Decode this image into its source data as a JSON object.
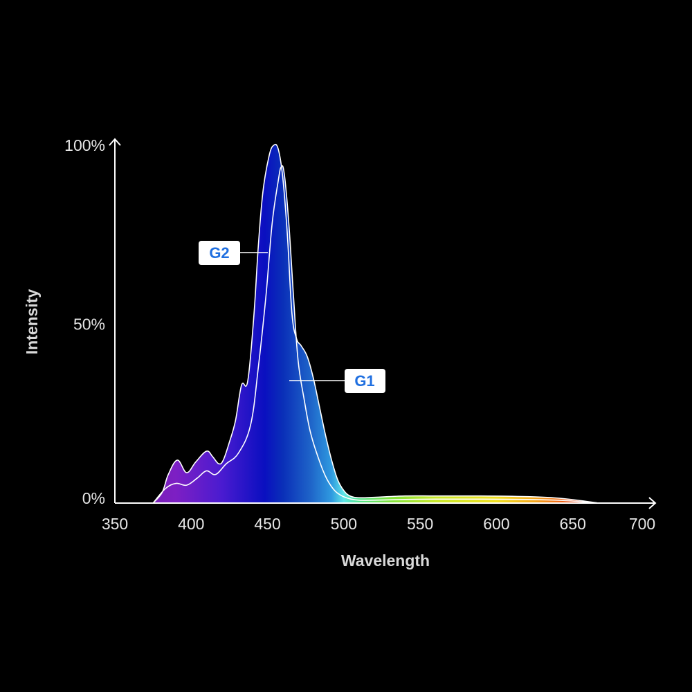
{
  "chart_data": {
    "type": "area",
    "xlabel": "Wavelength",
    "ylabel": "Intensity",
    "xlim": [
      350,
      700
    ],
    "ylim": [
      0,
      100
    ],
    "x_ticks": [
      "350",
      "400",
      "450",
      "500",
      "550",
      "600",
      "650",
      "700"
    ],
    "y_ticks": [
      "0%",
      "50%",
      "100%"
    ],
    "series": [
      {
        "name": "G2",
        "x": [
          375,
          381,
          385,
          391,
          397,
          403,
          410,
          414,
          418,
          421,
          425,
          429,
          433,
          437,
          441,
          444,
          447,
          451,
          454,
          457,
          460,
          463,
          466,
          469,
          472,
          476,
          480,
          484,
          488,
          492,
          496,
          500,
          504,
          510,
          520,
          540,
          560,
          590,
          620,
          640,
          655,
          667
        ],
        "y": [
          0,
          3,
          8,
          12,
          8.5,
          11.5,
          14.5,
          13,
          11,
          12,
          17,
          23,
          33,
          34,
          52,
          72,
          87,
          97,
          100,
          99,
          91,
          75,
          53,
          46,
          44,
          41,
          35,
          27,
          19,
          12,
          6.5,
          3.5,
          2,
          1.5,
          1.6,
          2,
          2,
          2,
          1.8,
          1.4,
          0.7,
          0
        ]
      },
      {
        "name": "G1",
        "x": [
          375,
          383,
          390,
          397,
          404,
          410,
          416,
          423,
          431,
          439,
          444,
          449,
          453,
          457,
          459,
          461,
          464,
          467,
          470,
          474,
          478,
          483,
          488,
          493,
          498,
          504,
          510,
          520,
          540,
          560,
          590,
          620,
          640,
          655,
          667
        ],
        "y": [
          0,
          4,
          5.5,
          5,
          7,
          9,
          8,
          11,
          14,
          22,
          38,
          58,
          78,
          90,
          94,
          92,
          78,
          58,
          40,
          29,
          20,
          13,
          7.5,
          4,
          2.2,
          1.2,
          0.8,
          0.8,
          1,
          1.1,
          1.1,
          1,
          0.8,
          0.4,
          0
        ]
      }
    ],
    "callouts": [
      {
        "label": "G2",
        "series": "G2"
      },
      {
        "label": "G1",
        "series": "G1"
      }
    ],
    "colors": {
      "background": "#000000",
      "axis": "#ffffff",
      "callout_text": "#1f6fe0",
      "callout_box": "#ffffff",
      "spectrum": [
        "#7a1fb8",
        "#7d1fc4",
        "#4a1bd0",
        "#0a0fc0",
        "#0a2fb8",
        "#1e63c8",
        "#2f9ae0",
        "#5fe6e8",
        "#4fe48a",
        "#7ee23a",
        "#c8e82a",
        "#f0e020",
        "#f4a61c",
        "#ee5a16",
        "#d01a10"
      ]
    },
    "grid": false,
    "legend": "none"
  }
}
